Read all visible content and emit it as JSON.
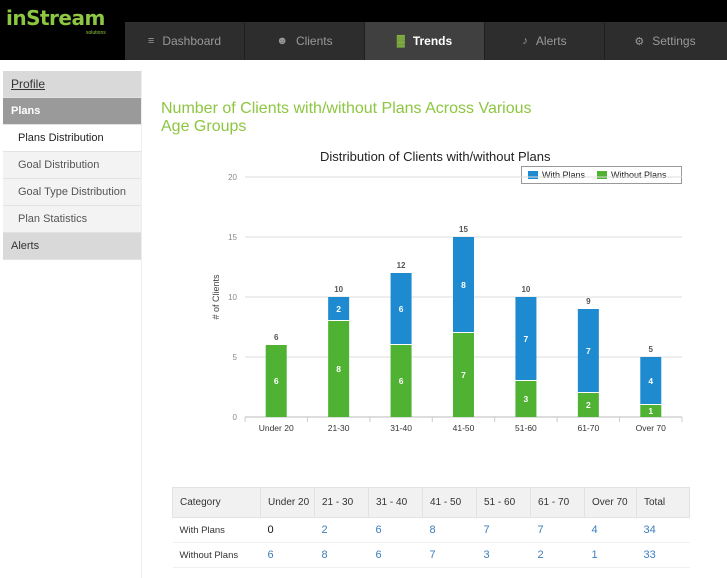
{
  "brand": {
    "name": "inStream",
    "sub": "solutions"
  },
  "nav": [
    {
      "label": "Dashboard",
      "icon": "rss-icon",
      "glyph": "≡"
    },
    {
      "label": "Clients",
      "icon": "user-icon",
      "glyph": "☻"
    },
    {
      "label": "Trends",
      "icon": "bar-chart-icon",
      "glyph": "▓"
    },
    {
      "label": "Alerts",
      "icon": "bell-icon",
      "glyph": "♪"
    },
    {
      "label": "Settings",
      "icon": "gear-icon",
      "glyph": "⚙"
    }
  ],
  "sidebar": {
    "profile": "Profile",
    "plans": "Plans",
    "plan_items": [
      "Plans Distribution",
      "Goal Distribution",
      "Goal Type Distribution",
      "Plan Statistics"
    ],
    "alerts": "Alerts"
  },
  "page": {
    "title": "Number of Clients with/without Plans Across Various Age Groups"
  },
  "colors": {
    "with": "#1e8bd0",
    "without": "#4fb233",
    "accent": "#8dc641"
  },
  "chart_data": {
    "type": "bar",
    "stacked": true,
    "title": "Distribution of Clients with/without Plans",
    "ylabel": "# of Clients",
    "xlabel": "",
    "ylim": [
      0,
      20
    ],
    "yticks": [
      0,
      5,
      10,
      15,
      20
    ],
    "categories": [
      "Under 20",
      "21-30",
      "31-40",
      "41-50",
      "51-60",
      "61-70",
      "Over 70"
    ],
    "series": [
      {
        "name": "Without Plans",
        "values": [
          6,
          8,
          6,
          7,
          3,
          2,
          1
        ]
      },
      {
        "name": "With Plans",
        "values": [
          0,
          2,
          6,
          8,
          7,
          7,
          4
        ]
      }
    ],
    "totals": [
      6,
      10,
      12,
      15,
      10,
      9,
      5
    ],
    "legend": "top-right"
  },
  "table": {
    "headers": [
      "Category",
      "Under 20",
      "21 - 30",
      "31 - 40",
      "41 - 50",
      "51 - 60",
      "61 - 70",
      "Over 70",
      "Total"
    ],
    "rows": [
      {
        "label": "With Plans",
        "values": [
          "0",
          "2",
          "6",
          "8",
          "7",
          "7",
          "4",
          "34"
        ]
      },
      {
        "label": "Without Plans",
        "values": [
          "6",
          "8",
          "6",
          "7",
          "3",
          "2",
          "1",
          "33"
        ]
      }
    ]
  }
}
